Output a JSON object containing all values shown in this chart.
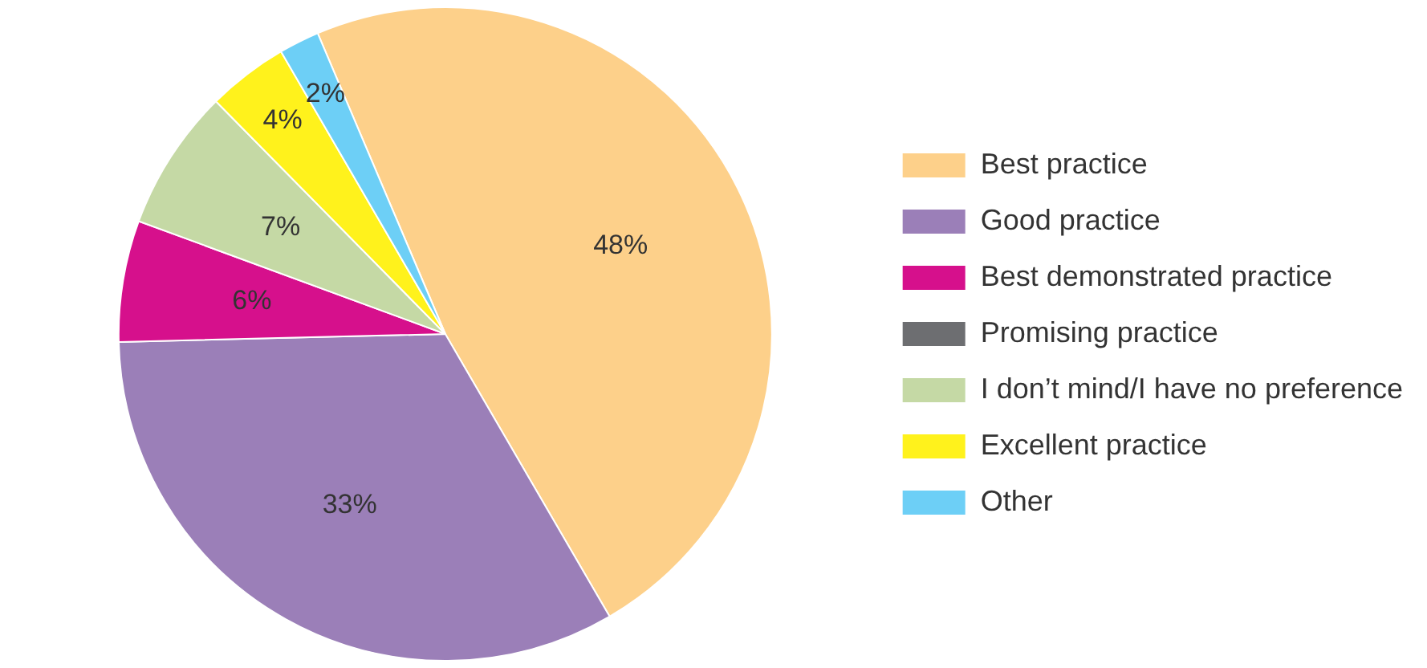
{
  "chart_data": {
    "type": "pie",
    "categories": [
      "Best practice",
      "Good practice",
      "Best demonstrated practice",
      "Promising practice",
      "I don’t mind/I have no preference",
      "Excellent practice",
      "Other"
    ],
    "values": [
      48,
      33,
      6,
      0,
      7,
      4,
      2
    ],
    "colors": [
      "#fdd08a",
      "#9b7fb8",
      "#d6108c",
      "#6d6e71",
      "#c5d9a5",
      "#fff21c",
      "#6dcff6"
    ],
    "value_labels": [
      "48%",
      "33%",
      "6%",
      null,
      "7%",
      "4%",
      "2%"
    ],
    "legend": "right"
  }
}
